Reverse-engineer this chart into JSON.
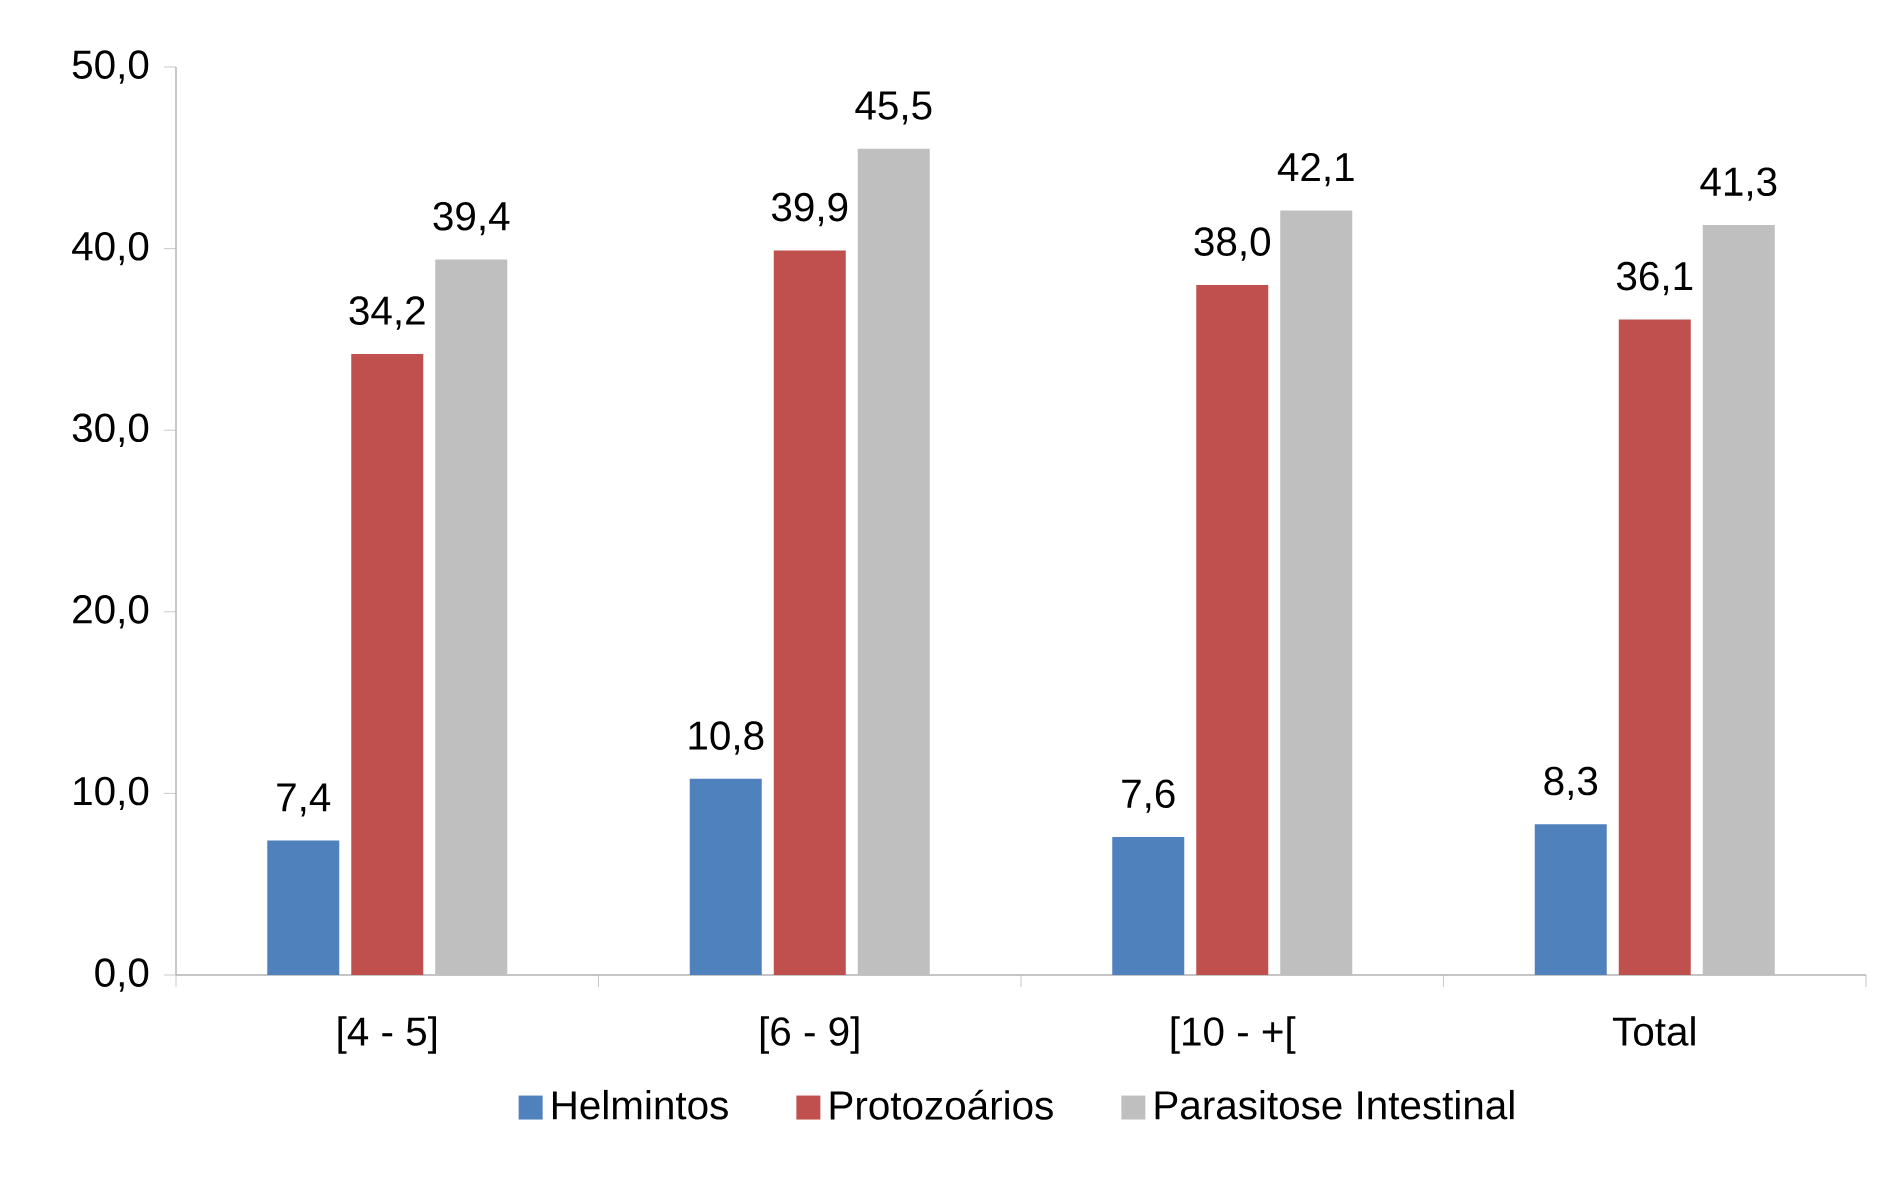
{
  "chart_data": {
    "type": "bar",
    "categories": [
      "[4 - 5]",
      "[6 - 9]",
      "[10 - +[",
      "Total"
    ],
    "series": [
      {
        "name": "Helmintos",
        "color": "#4f81bd",
        "values": [
          7.4,
          10.8,
          7.6,
          8.3
        ],
        "value_labels": [
          "7,4",
          "10,8",
          "7,6",
          "8,3"
        ]
      },
      {
        "name": "Protozoários",
        "color": "#c0504d",
        "values": [
          34.2,
          39.9,
          38.0,
          36.1
        ],
        "value_labels": [
          "34,2",
          "39,9",
          "38,0",
          "36,1"
        ]
      },
      {
        "name": "Parasitose Intestinal",
        "color": "#bfbfbf",
        "values": [
          39.4,
          45.5,
          42.1,
          41.3
        ],
        "value_labels": [
          "39,4",
          "45,5",
          "42,1",
          "41,3"
        ]
      }
    ],
    "ylim": [
      0,
      50
    ],
    "yticks": [
      {
        "value": 0,
        "label": "0,0"
      },
      {
        "value": 10,
        "label": "10,0"
      },
      {
        "value": 20,
        "label": "20,0"
      },
      {
        "value": 30,
        "label": "30,0"
      },
      {
        "value": 40,
        "label": "40,0"
      },
      {
        "value": 50,
        "label": "50,0"
      }
    ],
    "grid": false,
    "legend": "bottom"
  }
}
